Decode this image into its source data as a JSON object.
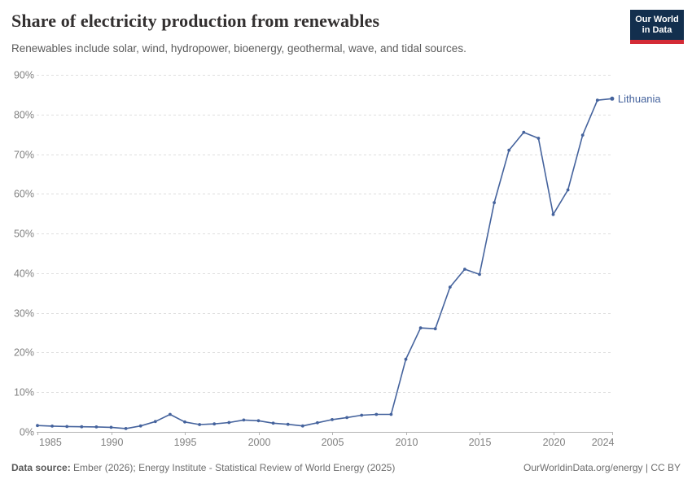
{
  "header": {
    "title": "Share of electricity production from renewables",
    "subtitle": "Renewables include solar, wind, hydropower, bioenergy, geothermal, wave, and tidal sources."
  },
  "logo": {
    "line1": "Our World",
    "line2": "in Data"
  },
  "chart_data": {
    "type": "line",
    "entity_label": "Lithuania",
    "x": [
      1985,
      1986,
      1987,
      1988,
      1989,
      1990,
      1991,
      1992,
      1993,
      1994,
      1995,
      1996,
      1997,
      1998,
      1999,
      2000,
      2001,
      2002,
      2003,
      2004,
      2005,
      2006,
      2007,
      2008,
      2009,
      2010,
      2011,
      2012,
      2013,
      2014,
      2015,
      2016,
      2017,
      2018,
      2019,
      2020,
      2021,
      2022,
      2023,
      2024
    ],
    "series": [
      {
        "name": "Lithuania",
        "color": "#45639d",
        "values": [
          1.6,
          1.45,
          1.35,
          1.3,
          1.25,
          1.15,
          0.85,
          1.5,
          2.6,
          4.4,
          2.5,
          1.85,
          2.0,
          2.35,
          3.0,
          2.8,
          2.2,
          1.9,
          1.5,
          2.3,
          3.1,
          3.6,
          4.2,
          4.4,
          4.4,
          18.3,
          26.2,
          26.0,
          36.5,
          41.0,
          39.7,
          57.8,
          71.0,
          75.5,
          74.0,
          54.8,
          61.0,
          74.8,
          83.6,
          84.0
        ]
      }
    ],
    "ylim": [
      0,
      90
    ],
    "yticks": [
      0,
      10,
      20,
      30,
      40,
      50,
      60,
      70,
      80,
      90
    ],
    "ytick_suffix": "%",
    "xticks": [
      1985,
      1990,
      1995,
      2000,
      2005,
      2010,
      2015,
      2020,
      2024
    ],
    "xlabel": "",
    "ylabel": "",
    "grid": "horizontal-dashed",
    "legend": "end-of-line-label"
  },
  "footer": {
    "source_label": "Data source:",
    "source_text": " Ember (2026); Energy Institute - Statistical Review of World Energy (2025)",
    "credit": "OurWorldinData.org/energy | CC BY"
  },
  "colors": {
    "line": "#45639d",
    "gridline": "#dedede",
    "axis": "#b3b3b3",
    "tick_label": "#808080",
    "logo_bg": "#132f4e",
    "logo_stripe": "#d42b36"
  }
}
